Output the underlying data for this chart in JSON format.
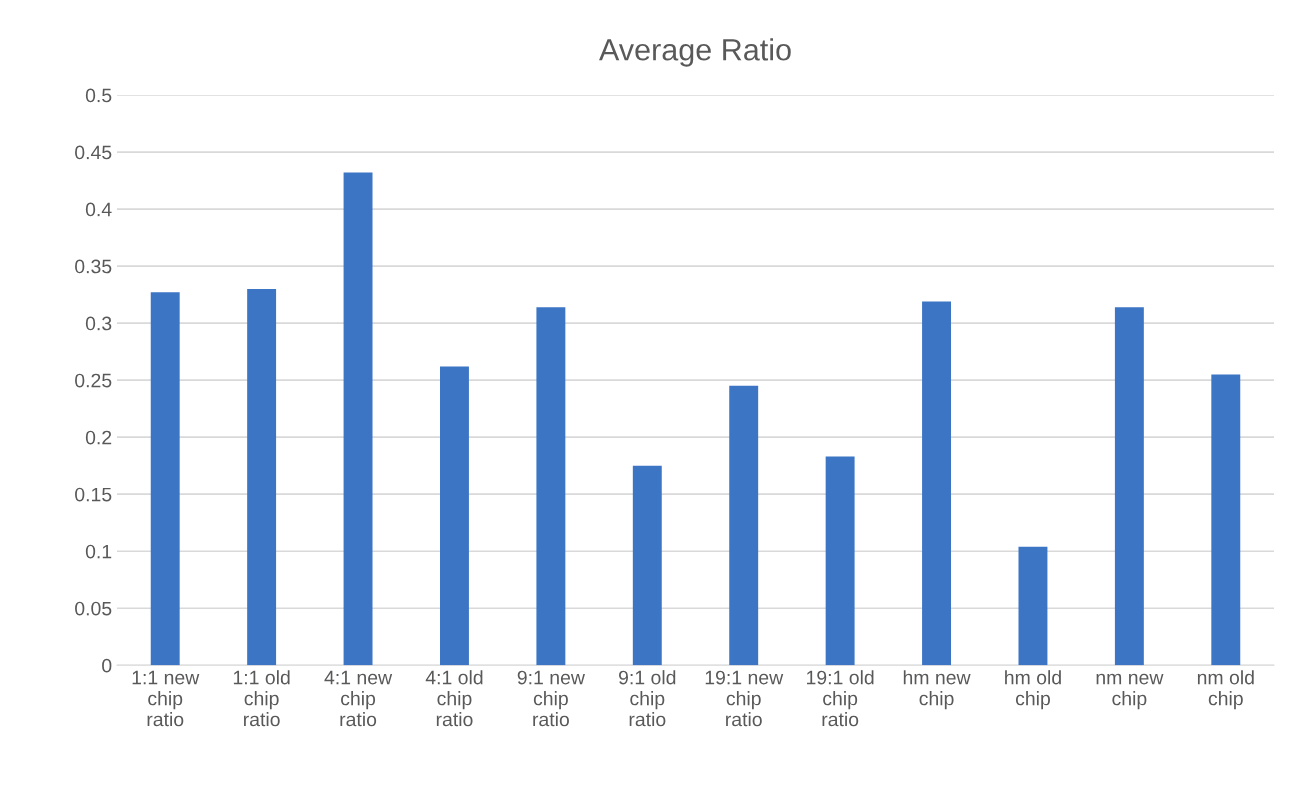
{
  "chart_data": {
    "type": "bar",
    "title": "Average Ratio",
    "categories": [
      "1:1 new\nchip\nratio",
      "1:1 old\nchip\nratio",
      "4:1 new\nchip\nratio",
      "4:1 old\nchip\nratio",
      "9:1 new\nchip\nratio",
      "9:1 old\nchip\nratio",
      "19:1 new\nchip\nratio",
      "19:1 old\nchip\nratio",
      "hm new\nchip",
      "hm old\nchip",
      "nm new\nchip",
      "nm old\nchip"
    ],
    "values": [
      0.327,
      0.33,
      0.432,
      0.262,
      0.314,
      0.175,
      0.245,
      0.183,
      0.319,
      0.104,
      0.314,
      0.255
    ],
    "color": "#3b75c4",
    "ylim": [
      0,
      0.5
    ],
    "yticks": [
      0,
      0.05,
      0.1,
      0.15,
      0.2,
      0.25,
      0.3,
      0.35,
      0.4,
      0.45,
      0.5
    ],
    "grid": "y"
  }
}
